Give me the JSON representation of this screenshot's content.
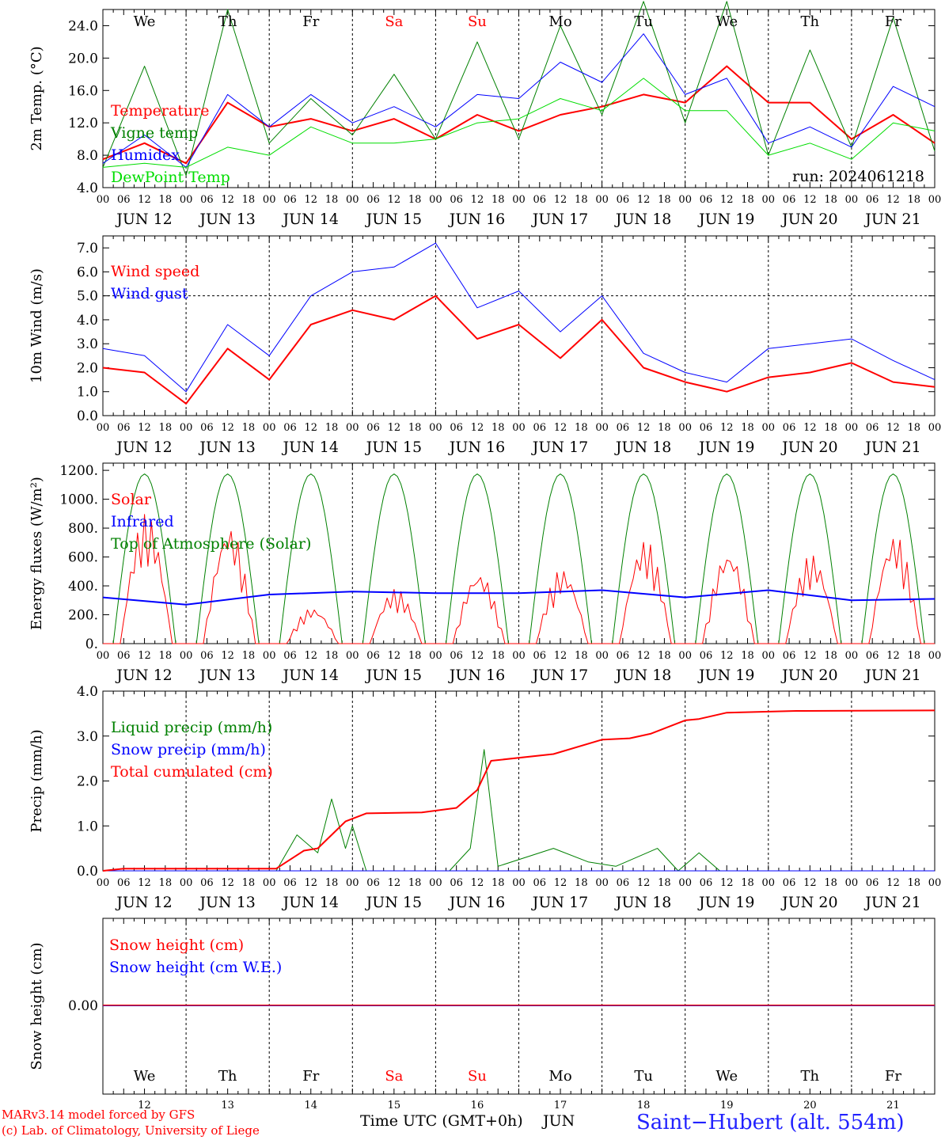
{
  "chart_data": [
    {
      "type": "line",
      "ylabel": "2m Temp. (°C)",
      "yticks": [
        "4.0",
        "8.0",
        "12.0",
        "16.0",
        "20.0",
        "24.0"
      ],
      "ylim": [
        4,
        26
      ],
      "hour_ticks": [
        "00",
        "06",
        "12",
        "18"
      ],
      "date_labels": [
        "JUN 12",
        "JUN 13",
        "JUN 14",
        "JUN 15",
        "JUN 16",
        "JUN 17",
        "JUN 18",
        "JUN 19",
        "JUN 20",
        "JUN 21"
      ],
      "day_names": [
        "We",
        "Th",
        "Fr",
        "Sa",
        "Su",
        "Mo",
        "Tu",
        "We",
        "Th",
        "Fr"
      ],
      "day_name_colors": [
        "#000000",
        "#000000",
        "#000000",
        "#ff0000",
        "#ff0000",
        "#000000",
        "#000000",
        "#000000",
        "#000000",
        "#000000"
      ],
      "annotation": "run: 2024061218",
      "x_hours": [
        0,
        12,
        24,
        36,
        48,
        60,
        72,
        84,
        96,
        108,
        120,
        132,
        144,
        156,
        168,
        180,
        192,
        204,
        216,
        228,
        240
      ],
      "series": [
        {
          "name": "Temperature",
          "color": "#ff0000",
          "width": 2,
          "values": [
            7.5,
            9.5,
            7.0,
            14.5,
            11.5,
            12.5,
            11.0,
            12.5,
            10.0,
            13.0,
            11.0,
            13.0,
            14.0,
            15.5,
            14.5,
            19.0,
            14.5,
            14.5,
            10.0,
            13.0,
            9.5
          ]
        },
        {
          "name": "Vigne temp",
          "color": "#008000",
          "width": 1,
          "values": [
            6.5,
            19.0,
            5.5,
            26.0,
            9.5,
            15.0,
            10.5,
            18.0,
            10.0,
            22.0,
            10.0,
            24.0,
            13.0,
            27.0,
            12.0,
            27.0,
            8.0,
            21.0,
            9.0,
            25.0,
            8.5
          ]
        },
        {
          "name": "Humidex",
          "color": "#0000ff",
          "width": 1,
          "values": [
            7.0,
            10.5,
            6.5,
            15.5,
            11.5,
            15.5,
            12.0,
            14.0,
            11.5,
            15.5,
            15.0,
            19.5,
            17.0,
            23.0,
            15.5,
            17.5,
            9.5,
            11.5,
            9.0,
            16.5,
            14.0
          ]
        },
        {
          "name": "DewPoint Temp",
          "color": "#00dd00",
          "width": 1,
          "values": [
            6.5,
            7.0,
            6.5,
            9.0,
            8.0,
            11.5,
            9.5,
            9.5,
            10.0,
            12.0,
            12.5,
            15.0,
            13.5,
            17.5,
            13.5,
            13.5,
            8.0,
            9.5,
            7.5,
            12.0,
            11.0
          ]
        }
      ]
    },
    {
      "type": "line",
      "ylabel": "10m Wind (m/s)",
      "yticks": [
        "0.0",
        "1.0",
        "2.0",
        "3.0",
        "4.0",
        "5.0",
        "6.0",
        "7.0"
      ],
      "ylim": [
        0,
        7.5
      ],
      "ref_line": 5.0,
      "hour_ticks": [
        "00",
        "06",
        "12",
        "18"
      ],
      "date_labels": [
        "JUN 12",
        "JUN 13",
        "JUN 14",
        "JUN 15",
        "JUN 16",
        "JUN 17",
        "JUN 18",
        "JUN 19",
        "JUN 20",
        "JUN 21"
      ],
      "x_hours": [
        0,
        12,
        24,
        36,
        48,
        60,
        72,
        84,
        96,
        108,
        120,
        132,
        144,
        156,
        168,
        180,
        192,
        204,
        216,
        228,
        240
      ],
      "series": [
        {
          "name": "Wind speed",
          "color": "#ff0000",
          "width": 2,
          "values": [
            2.0,
            1.8,
            0.5,
            2.8,
            1.5,
            3.8,
            4.4,
            4.0,
            5.0,
            3.2,
            3.8,
            2.4,
            4.0,
            2.0,
            1.4,
            1.0,
            1.6,
            1.8,
            2.2,
            1.4,
            1.2
          ]
        },
        {
          "name": "Wind gust",
          "color": "#0000ff",
          "width": 1,
          "values": [
            2.8,
            2.5,
            1.0,
            3.8,
            2.5,
            5.0,
            6.0,
            6.2,
            7.2,
            4.5,
            5.2,
            3.5,
            5.0,
            2.6,
            1.8,
            1.4,
            2.8,
            3.0,
            3.2,
            2.3,
            1.5
          ]
        }
      ]
    },
    {
      "type": "line",
      "ylabel": "Energy fluxes (W/m²)",
      "yticks": [
        "0.",
        "200.",
        "400.",
        "600.",
        "800.",
        "1000.",
        "1200."
      ],
      "ylim": [
        0,
        1250
      ],
      "hour_ticks": [
        "00",
        "06",
        "12",
        "18"
      ],
      "date_labels": [
        "JUN 12",
        "JUN 13",
        "JUN 14",
        "JUN 15",
        "JUN 16",
        "JUN 17",
        "JUN 18",
        "JUN 19",
        "JUN 20",
        "JUN 21"
      ],
      "solar_peaks": [
        900,
        820,
        250,
        380,
        500,
        520,
        720,
        650,
        620,
        760
      ],
      "infrared": [
        {
          "x": 0,
          "v": 320
        },
        {
          "x": 24,
          "v": 270
        },
        {
          "x": 48,
          "v": 340
        },
        {
          "x": 72,
          "v": 360
        },
        {
          "x": 96,
          "v": 350
        },
        {
          "x": 120,
          "v": 350
        },
        {
          "x": 144,
          "v": 370
        },
        {
          "x": 168,
          "v": 320
        },
        {
          "x": 192,
          "v": 370
        },
        {
          "x": 216,
          "v": 300
        },
        {
          "x": 240,
          "v": 310
        }
      ],
      "toa_peak": 1175,
      "series": [
        {
          "name": "Solar",
          "color": "#ff0000",
          "width": 1
        },
        {
          "name": "Infrared",
          "color": "#0000ff",
          "width": 2
        },
        {
          "name": "Top of Atmosphere (Solar)",
          "color": "#008000",
          "width": 1
        }
      ]
    },
    {
      "type": "line",
      "ylabel": "Precip (mm/h)",
      "yticks": [
        "0.0",
        "1.0",
        "2.0",
        "3.0",
        "4.0"
      ],
      "ylim": [
        0,
        4
      ],
      "hour_ticks": [
        "00",
        "06",
        "12",
        "18"
      ],
      "date_labels": [
        "JUN 12",
        "JUN 13",
        "JUN 14",
        "JUN 15",
        "JUN 16",
        "JUN 17",
        "JUN 18",
        "JUN 19",
        "JUN 20",
        "JUN 21"
      ],
      "series": [
        {
          "name": "Liquid precip (mm/h)",
          "color": "#008000",
          "width": 1,
          "points": [
            {
              "x": 0,
              "v": 0
            },
            {
              "x": 50,
              "v": 0
            },
            {
              "x": 56,
              "v": 0.8
            },
            {
              "x": 62,
              "v": 0.4
            },
            {
              "x": 66,
              "v": 1.6
            },
            {
              "x": 70,
              "v": 0.5
            },
            {
              "x": 72,
              "v": 1.0
            },
            {
              "x": 76,
              "v": 0
            },
            {
              "x": 100,
              "v": 0
            },
            {
              "x": 106,
              "v": 0.5
            },
            {
              "x": 110,
              "v": 2.7
            },
            {
              "x": 114,
              "v": 0.1
            },
            {
              "x": 130,
              "v": 0.5
            },
            {
              "x": 140,
              "v": 0.2
            },
            {
              "x": 148,
              "v": 0.1
            },
            {
              "x": 160,
              "v": 0.5
            },
            {
              "x": 166,
              "v": 0
            },
            {
              "x": 172,
              "v": 0.4
            },
            {
              "x": 178,
              "v": 0
            },
            {
              "x": 240,
              "v": 0
            }
          ]
        },
        {
          "name": "Snow precip (mm/h)",
          "color": "#0000ff",
          "width": 1,
          "points": [
            {
              "x": 0,
              "v": 0
            },
            {
              "x": 240,
              "v": 0
            }
          ]
        },
        {
          "name": "Total cumulated (cm)",
          "color": "#ff0000",
          "width": 2,
          "points": [
            {
              "x": 0,
              "v": 0
            },
            {
              "x": 6,
              "v": 0.05
            },
            {
              "x": 50,
              "v": 0.05
            },
            {
              "x": 58,
              "v": 0.45
            },
            {
              "x": 62,
              "v": 0.5
            },
            {
              "x": 70,
              "v": 1.1
            },
            {
              "x": 76,
              "v": 1.28
            },
            {
              "x": 92,
              "v": 1.3
            },
            {
              "x": 102,
              "v": 1.4
            },
            {
              "x": 108,
              "v": 1.8
            },
            {
              "x": 112,
              "v": 2.45
            },
            {
              "x": 130,
              "v": 2.6
            },
            {
              "x": 144,
              "v": 2.92
            },
            {
              "x": 152,
              "v": 2.95
            },
            {
              "x": 158,
              "v": 3.05
            },
            {
              "x": 168,
              "v": 3.35
            },
            {
              "x": 172,
              "v": 3.38
            },
            {
              "x": 180,
              "v": 3.52
            },
            {
              "x": 200,
              "v": 3.56
            },
            {
              "x": 240,
              "v": 3.57
            }
          ]
        }
      ]
    },
    {
      "type": "line",
      "ylabel": "Snow height (cm)",
      "yticks": [
        "0.00"
      ],
      "ylim": [
        -1,
        1
      ],
      "day_names": [
        "We",
        "Th",
        "Fr",
        "Sa",
        "Su",
        "Mo",
        "Tu",
        "We",
        "Th",
        "Fr"
      ],
      "day_name_colors": [
        "#000000",
        "#000000",
        "#000000",
        "#ff0000",
        "#ff0000",
        "#000000",
        "#000000",
        "#000000",
        "#000000",
        "#000000"
      ],
      "day_numbers": [
        "12",
        "13",
        "14",
        "15",
        "16",
        "17",
        "18",
        "19",
        "20",
        "21"
      ],
      "series": [
        {
          "name": "Snow height (cm)",
          "color": "#ff0000",
          "width": 2,
          "values": [
            0,
            0
          ]
        },
        {
          "name": "Snow height (cm W.E.)",
          "color": "#0000ff",
          "width": 1,
          "values": [
            0,
            0
          ]
        }
      ]
    }
  ],
  "footer": {
    "model": "MARv3.14 model forced by GFS",
    "lab": "(c) Lab. of Climatology, University of Liege",
    "axis_label": "Time UTC (GMT+0h)",
    "month": "JUN",
    "station": "Saint−Hubert (alt. 554m)"
  }
}
